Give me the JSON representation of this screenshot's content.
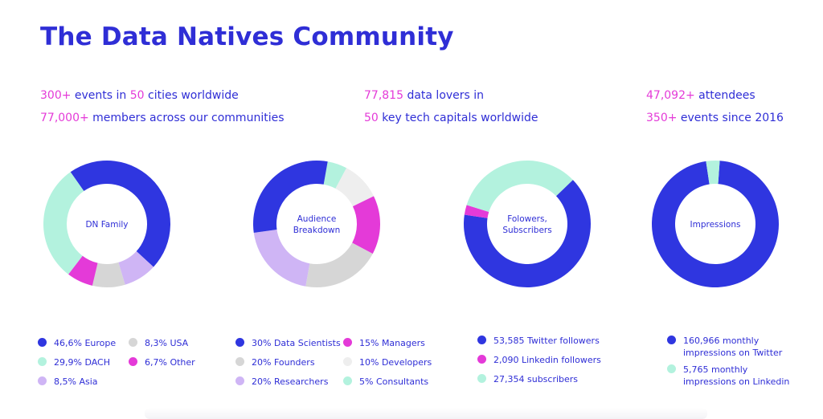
{
  "title": "The Data Natives Community",
  "stats": [
    {
      "parts": [
        {
          "t": "300+",
          "h": true
        },
        {
          "t": " events in ",
          "h": false
        },
        {
          "t": "50",
          "h": true
        },
        {
          "t": " cities worldwide",
          "h": false
        }
      ]
    },
    {
      "parts": [
        {
          "t": "77,000+",
          "h": true
        },
        {
          "t": " members across our communities",
          "h": false
        }
      ]
    },
    {
      "parts": [
        {
          "t": "77,815",
          "h": true
        },
        {
          "t": " data lovers in",
          "h": false
        }
      ]
    },
    {
      "parts": [
        {
          "t": "50",
          "h": true
        },
        {
          "t": " key tech capitals worldwide",
          "h": false
        }
      ]
    },
    {
      "parts": [
        {
          "t": "47,092+",
          "h": true
        },
        {
          "t": " attendees",
          "h": false
        }
      ]
    },
    {
      "parts": [
        {
          "t": "350+",
          "h": true
        },
        {
          "t": " events since 2016",
          "h": false
        }
      ]
    }
  ],
  "colors": {
    "blue": "#2f36e0",
    "mint": "#b3f2de",
    "gray": "#d6d6d6",
    "lightgray": "#eeeeee",
    "pink": "#e43ad8",
    "lavender": "#cfb5f5",
    "text": "#2f2ed6"
  },
  "chart_data": [
    {
      "type": "pie",
      "center_label": [
        "DN Family"
      ],
      "slices": [
        {
          "label": "46,6% Europe",
          "value": 46.6,
          "color": "#2f36e0"
        },
        {
          "label": "8,5% Asia",
          "value": 8.5,
          "color": "#cfb5f5"
        },
        {
          "label": "8,3% USA",
          "value": 8.3,
          "color": "#d6d6d6"
        },
        {
          "label": "6,7% Other",
          "value": 6.7,
          "color": "#e43ad8"
        },
        {
          "label": "29,9% DACH",
          "value": 29.9,
          "color": "#b3f2de"
        }
      ]
    },
    {
      "type": "pie",
      "center_label": [
        "Audience",
        "Breakdown"
      ],
      "slices": [
        {
          "label": "5% Consultants",
          "value": 5,
          "color": "#b3f2de"
        },
        {
          "label": "10% Developers",
          "value": 10,
          "color": "#eeeeee"
        },
        {
          "label": "15% Managers",
          "value": 15,
          "color": "#e43ad8"
        },
        {
          "label": "20% Founders",
          "value": 20,
          "color": "#d6d6d6"
        },
        {
          "label": "20% Researchers",
          "value": 20,
          "color": "#cfb5f5"
        },
        {
          "label": "30% Data Scientists",
          "value": 30,
          "color": "#2f36e0"
        }
      ]
    },
    {
      "type": "pie",
      "center_label": [
        "Folowers,",
        "Subscribers"
      ],
      "slices": [
        {
          "label": "53,585 Twitter followers",
          "value": 53585,
          "color": "#2f36e0"
        },
        {
          "label": "2,090 Linkedin followers",
          "value": 2090,
          "color": "#e43ad8"
        },
        {
          "label": "27,354 subscribers",
          "value": 27354,
          "color": "#b3f2de"
        }
      ]
    },
    {
      "type": "pie",
      "center_label": [
        "Impressions"
      ],
      "slices": [
        {
          "label": "160,966 monthly impressions on Twitter",
          "value": 160966,
          "color": "#2f36e0"
        },
        {
          "label": "5,765 monthly impressions on Linkedin",
          "value": 5765,
          "color": "#b3f2de"
        }
      ]
    }
  ],
  "legends": [
    [
      {
        "lines": [
          "46,6% Europe"
        ],
        "color": "#2f36e0"
      },
      {
        "lines": [
          "8,3% USA"
        ],
        "color": "#d6d6d6"
      },
      {
        "lines": [
          "29,9% DACH"
        ],
        "color": "#b3f2de"
      },
      {
        "lines": [
          "6,7% Other"
        ],
        "color": "#e43ad8"
      },
      {
        "lines": [
          "8,5% Asia"
        ],
        "color": "#cfb5f5"
      }
    ],
    [
      {
        "lines": [
          "30% Data Scientists"
        ],
        "color": "#2f36e0"
      },
      {
        "lines": [
          "15% Managers"
        ],
        "color": "#e43ad8"
      },
      {
        "lines": [
          "20% Founders"
        ],
        "color": "#d6d6d6"
      },
      {
        "lines": [
          "10% Developers"
        ],
        "color": "#eeeeee"
      },
      {
        "lines": [
          "20% Researchers"
        ],
        "color": "#cfb5f5"
      },
      {
        "lines": [
          "5% Consultants"
        ],
        "color": "#b3f2de"
      }
    ],
    [
      {
        "lines": [
          "53,585 Twitter followers"
        ],
        "color": "#2f36e0"
      },
      {
        "lines": [
          "2,090 Linkedin followers"
        ],
        "color": "#e43ad8"
      },
      {
        "lines": [
          "27,354 subscribers"
        ],
        "color": "#b3f2de"
      }
    ],
    [
      {
        "lines": [
          "160,966 monthly",
          "impressions on Twitter"
        ],
        "color": "#2f36e0"
      },
      {
        "lines": [
          "5,765 monthly",
          "impressions on Linkedin"
        ],
        "color": "#b3f2de"
      }
    ]
  ]
}
